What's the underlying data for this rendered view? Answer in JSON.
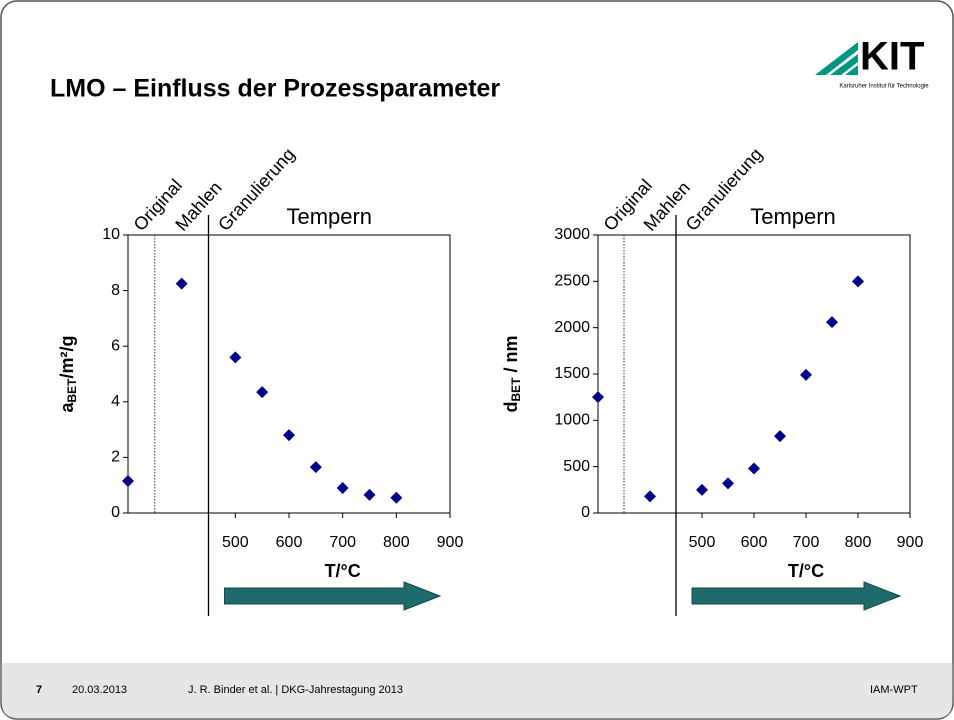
{
  "slide": {
    "title": "LMO – Einfluss der Prozessparameter",
    "logo": {
      "name": "KIT",
      "subtitle": "Karlsruher Institut für Technologie"
    },
    "footer": {
      "page": "7",
      "date": "20.03.2013",
      "author": "J. R. Binder et al. | DKG-Jahrestagung 2013",
      "institute": "IAM-WPT"
    }
  },
  "chart_data": [
    {
      "type": "scatter",
      "ylabel": [
        "a",
        "BET",
        "/m²/g"
      ],
      "xlabel": "T/°C",
      "annotations": [
        "Original",
        "Mahlen",
        "Granulierung",
        "Tempern"
      ],
      "x": [
        300,
        400,
        500,
        550,
        600,
        650,
        700,
        750,
        800
      ],
      "series": [
        {
          "name": "aBET",
          "color": "#00008b",
          "values": [
            1.15,
            8.25,
            5.6,
            4.35,
            2.8,
            1.65,
            0.9,
            0.65,
            0.55
          ]
        }
      ],
      "xlim": [
        300,
        900
      ],
      "xticks": [
        500,
        600,
        700,
        800,
        900
      ],
      "ylim": [
        0,
        10
      ],
      "yticks": [
        0,
        2,
        4,
        6,
        8,
        10
      ],
      "dividers": [
        350,
        450
      ]
    },
    {
      "type": "scatter",
      "ylabel": [
        "d",
        "BET",
        " / nm"
      ],
      "xlabel": "T/°C",
      "annotations": [
        "Original",
        "Mahlen",
        "Granulierung",
        "Tempern"
      ],
      "x": [
        300,
        400,
        500,
        550,
        600,
        650,
        700,
        750,
        800
      ],
      "series": [
        {
          "name": "dBET",
          "color": "#00008b",
          "values": [
            1250,
            180,
            250,
            320,
            480,
            830,
            1490,
            2060,
            2500
          ]
        }
      ],
      "xlim": [
        300,
        900
      ],
      "xticks": [
        500,
        600,
        700,
        800,
        900
      ],
      "ylim": [
        0,
        3000
      ],
      "yticks": [
        0,
        500,
        1000,
        1500,
        2000,
        2500,
        3000
      ],
      "dividers": [
        350,
        450
      ]
    }
  ]
}
